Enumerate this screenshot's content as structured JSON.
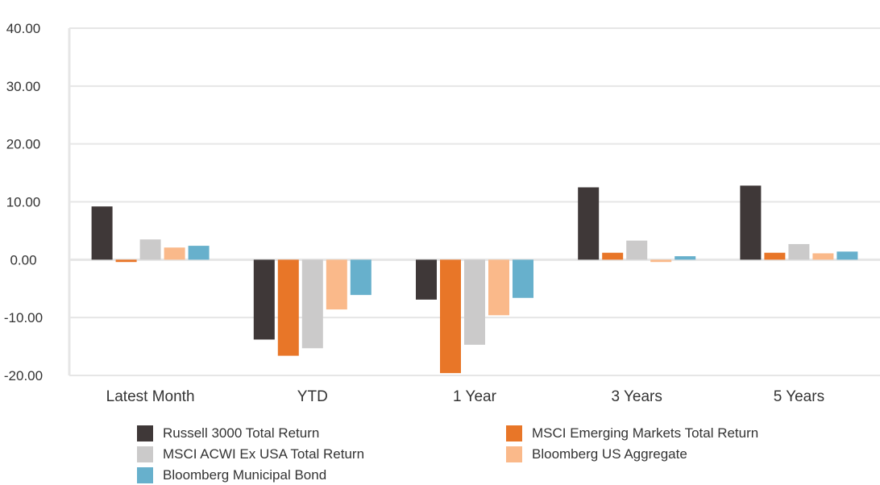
{
  "chart_data": {
    "type": "bar",
    "title": "",
    "xlabel": "",
    "ylabel": "",
    "ylim": [
      -20,
      40
    ],
    "yticks": [
      "40.00",
      "30.00",
      "20.00",
      "10.00",
      "0.00",
      "-10.00",
      "-20.00"
    ],
    "ytick_values": [
      40,
      30,
      20,
      10,
      0,
      -10,
      -20
    ],
    "grid": true,
    "legend_position": "bottom",
    "categories": [
      "Latest Month",
      "YTD",
      "1 Year",
      "3 Years",
      "5 Years"
    ],
    "series": [
      {
        "name": "Russell 3000 Total Return",
        "color": "#3f3838",
        "values": [
          9.2,
          -13.8,
          -6.9,
          12.5,
          12.8
        ]
      },
      {
        "name": "MSCI Emerging Markets Total Return",
        "color": "#e87628",
        "values": [
          -0.4,
          -16.6,
          -19.6,
          1.2,
          1.2
        ]
      },
      {
        "name": "MSCI ACWI Ex USA Total Return",
        "color": "#cbcaca",
        "values": [
          3.5,
          -15.3,
          -14.7,
          3.3,
          2.7
        ]
      },
      {
        "name": "Bloomberg US Aggregate",
        "color": "#fab98a",
        "values": [
          2.1,
          -8.6,
          -9.6,
          -0.4,
          1.1
        ]
      },
      {
        "name": "Bloomberg Municipal Bond",
        "color": "#67b0cc",
        "values": [
          2.4,
          -6.1,
          -6.6,
          0.6,
          1.4
        ]
      }
    ]
  }
}
